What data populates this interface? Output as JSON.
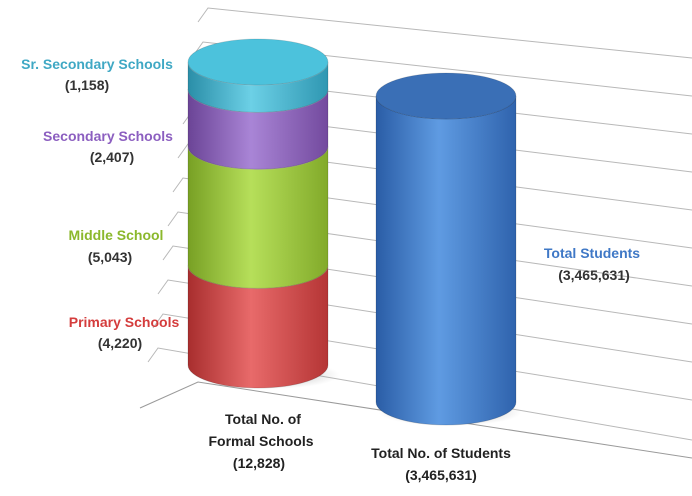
{
  "chart_data": {
    "type": "bar",
    "title": "",
    "xlabel": "",
    "ylabel": "",
    "grid": true,
    "categories": [
      {
        "line1": "Total No. of",
        "line2": "Formal Schools",
        "line3": "(12,828)"
      },
      {
        "line1": "Total No. of Students",
        "line2": "(3,465,631)"
      }
    ],
    "stack": [
      {
        "name": "Primary Schools",
        "value_label": "(4,220)",
        "value": 4220,
        "color": "#d94a4a"
      },
      {
        "name": "Middle School",
        "value_label": "(5,043)",
        "value": 5043,
        "color": "#9bc83a"
      },
      {
        "name": "Secondary Schools",
        "value_label": "(2,407)",
        "value": 2407,
        "color": "#8c5fc0"
      },
      {
        "name": "Sr. Secondary Schools",
        "value_label": "(1,158)",
        "value": 1158,
        "color": "#3fb4cf"
      }
    ],
    "students": {
      "name": "Total Students",
      "value_label": "(3,465,631)",
      "value": 3465631,
      "color": "#3f78c6"
    }
  }
}
